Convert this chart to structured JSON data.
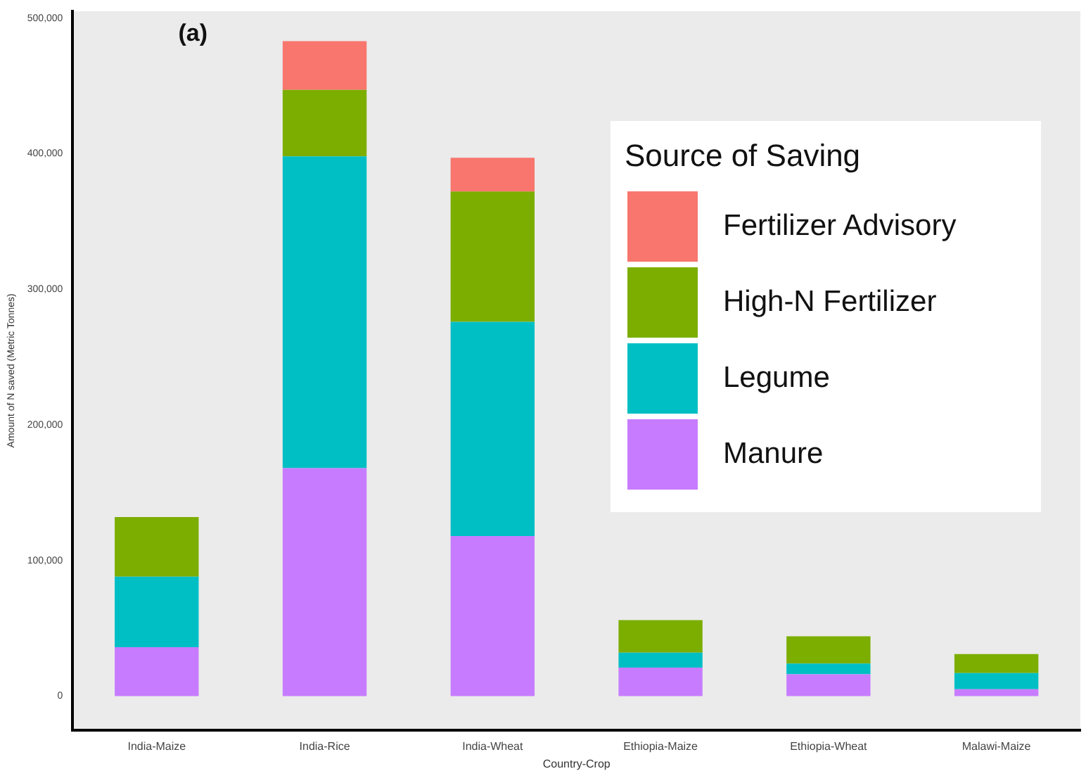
{
  "chart_data": {
    "type": "bar",
    "stacked": true,
    "xlabel": "Country-Crop",
    "ylabel": "Amount of N saved (Metric Tonnes)",
    "legend_title": "Source of Saving",
    "annotations": [
      "(a)"
    ],
    "categories": [
      "India-Maize",
      "India-Rice",
      "India-Wheat",
      "Ethiopia-Maize",
      "Ethiopia-Wheat",
      "Malawi-Maize"
    ],
    "series": [
      {
        "name": "Manure",
        "color": "#c77cff",
        "values": [
          36000,
          168000,
          118000,
          21000,
          16000,
          5000
        ]
      },
      {
        "name": "Legume",
        "color": "#00bfc4",
        "values": [
          52000,
          230000,
          158000,
          11000,
          8000,
          12000
        ]
      },
      {
        "name": "High-N Fertilizer",
        "color": "#7cae00",
        "values": [
          44000,
          49000,
          96000,
          24000,
          20000,
          14000
        ]
      },
      {
        "name": "Fertilizer Advisory",
        "color": "#f8766d",
        "values": [
          null,
          36000,
          25000,
          null,
          null,
          null
        ]
      }
    ],
    "ylim": [
      -25000,
      505000
    ],
    "yticks": [
      {
        "value": 0,
        "label": "0"
      },
      {
        "value": 100000,
        "label": "100,000"
      },
      {
        "value": 200000,
        "label": "200,000"
      },
      {
        "value": 300000,
        "label": "300,000"
      },
      {
        "value": 400000,
        "label": "400,000"
      },
      {
        "value": 500000,
        "label": "500,000"
      }
    ],
    "grid": false,
    "legend": "top right"
  }
}
